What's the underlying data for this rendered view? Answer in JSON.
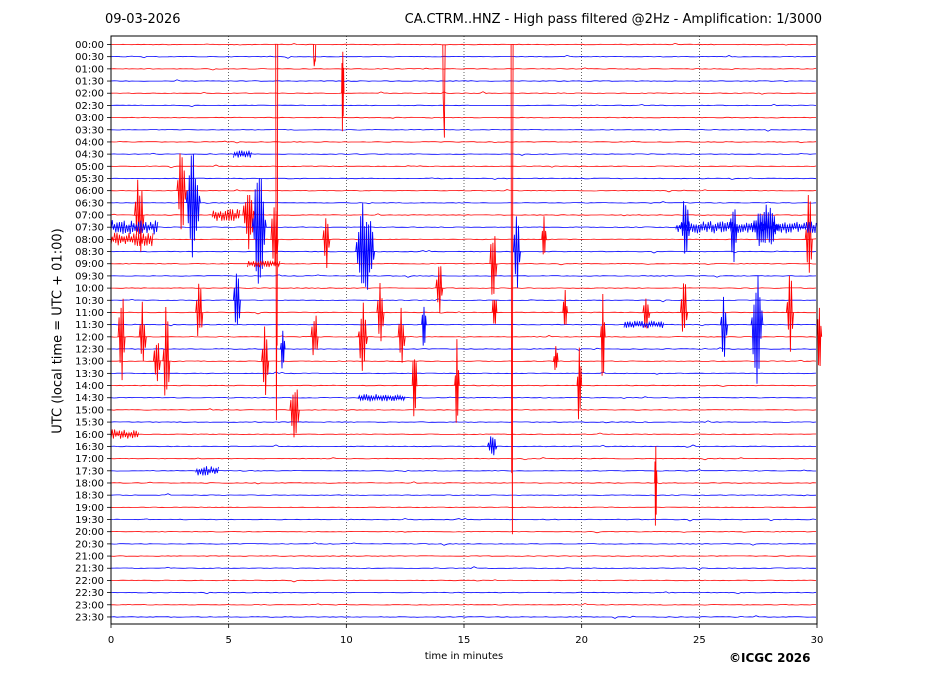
{
  "header": {
    "date": "09-03-2026",
    "title": "CA.CTRM..HNZ - High pass filtered @2Hz - Amplification: 1/3000"
  },
  "footer": {
    "copyright": "©ICGC 2026"
  },
  "colors": {
    "trace_a": "#ff0000",
    "trace_b": "#0000ff",
    "axes": "#000000",
    "background": "#ffffff"
  },
  "chart_data": {
    "type": "line",
    "title": "CA.CTRM..HNZ - High pass filtered @2Hz - Amplification: 1/3000",
    "xlabel": "time in minutes",
    "ylabel": "UTC (local time = UTC + 01:00)",
    "xlim": [
      0,
      30
    ],
    "xticks": [
      0,
      5,
      10,
      15,
      20,
      25,
      30
    ],
    "grid": "vertical dotted lines every 5 minutes",
    "row_labels": [
      "00:00",
      "00:30",
      "01:00",
      "01:30",
      "02:00",
      "02:30",
      "03:00",
      "03:30",
      "04:00",
      "04:30",
      "05:00",
      "05:30",
      "06:00",
      "06:30",
      "07:00",
      "07:30",
      "08:00",
      "08:30",
      "09:00",
      "09:30",
      "10:00",
      "10:30",
      "11:00",
      "11:30",
      "12:00",
      "12:30",
      "13:00",
      "13:30",
      "14:00",
      "14:30",
      "15:00",
      "15:30",
      "16:00",
      "16:30",
      "17:00",
      "17:30",
      "18:00",
      "18:30",
      "19:00",
      "19:30",
      "20:00",
      "20:30",
      "21:00",
      "21:30",
      "22:00",
      "22:30",
      "23:00",
      "23:30"
    ],
    "row_colors": "alternating red (even rows) and blue (odd rows)",
    "events": [
      {
        "row": 0,
        "minute": 8.6,
        "amp": 2.8,
        "dur": 0.1,
        "dir": "down"
      },
      {
        "row": 4,
        "minute": 9.8,
        "amp": 5.0,
        "dur": 0.1,
        "dir": "both"
      },
      {
        "row": 0,
        "minute": 14.1,
        "amp": 9.0,
        "dur": 0.1,
        "dir": "down"
      },
      {
        "row": 0,
        "minute": 7.0,
        "amp": 40.0,
        "dur": 0.05,
        "dir": "down"
      },
      {
        "row": 0,
        "minute": 17.0,
        "amp": 47.0,
        "dur": 0.05,
        "dir": "down"
      },
      {
        "row": 12,
        "minute": 2.8,
        "amp": 4.0,
        "dur": 0.4,
        "dir": "both"
      },
      {
        "row": 13,
        "minute": 3.2,
        "amp": 5.0,
        "dur": 0.6,
        "dir": "both"
      },
      {
        "row": 14,
        "minute": 1.0,
        "amp": 4.0,
        "dur": 0.4,
        "dir": "both"
      },
      {
        "row": 14,
        "minute": 5.6,
        "amp": 3.0,
        "dur": 0.5,
        "dir": "both"
      },
      {
        "row": 15,
        "minute": 6.0,
        "amp": 5.0,
        "dur": 0.6,
        "dir": "both"
      },
      {
        "row": 16,
        "minute": 6.8,
        "amp": 4.0,
        "dur": 0.3,
        "dir": "both"
      },
      {
        "row": 17,
        "minute": 10.4,
        "amp": 5.0,
        "dur": 0.8,
        "dir": "both"
      },
      {
        "row": 16,
        "minute": 9.0,
        "amp": 3.0,
        "dur": 0.3,
        "dir": "both"
      },
      {
        "row": 18,
        "minute": 16.1,
        "amp": 4.0,
        "dur": 0.3,
        "dir": "both"
      },
      {
        "row": 17,
        "minute": 17.1,
        "amp": 4.0,
        "dur": 0.3,
        "dir": "both"
      },
      {
        "row": 16,
        "minute": 18.3,
        "amp": 2.5,
        "dur": 0.2,
        "dir": "both"
      },
      {
        "row": 16,
        "minute": 29.5,
        "amp": 4.0,
        "dur": 0.3,
        "dir": "both"
      },
      {
        "row": 15,
        "minute": 26.3,
        "amp": 3.0,
        "dur": 0.3,
        "dir": "both"
      },
      {
        "row": 15,
        "minute": 24.2,
        "amp": 2.5,
        "dur": 0.4,
        "dir": "both"
      },
      {
        "row": 15,
        "minute": 27.2,
        "amp": 2.0,
        "dur": 1.2,
        "dir": "both"
      },
      {
        "row": 23,
        "minute": 27.2,
        "amp": 5.0,
        "dur": 0.5,
        "dir": "both"
      },
      {
        "row": 23,
        "minute": 25.9,
        "amp": 3.0,
        "dur": 0.3,
        "dir": "both"
      },
      {
        "row": 22,
        "minute": 24.2,
        "amp": 3.0,
        "dur": 0.3,
        "dir": "both"
      },
      {
        "row": 22,
        "minute": 28.7,
        "amp": 3.5,
        "dur": 0.3,
        "dir": "both"
      },
      {
        "row": 24,
        "minute": 0.3,
        "amp": 4.0,
        "dur": 0.3,
        "dir": "both"
      },
      {
        "row": 26,
        "minute": 2.2,
        "amp": 5.0,
        "dur": 0.3,
        "dir": "both"
      },
      {
        "row": 30,
        "minute": 7.6,
        "amp": 3.5,
        "dur": 0.4,
        "dir": "both"
      },
      {
        "row": 28,
        "minute": 12.8,
        "amp": 4.0,
        "dur": 0.2,
        "dir": "both"
      },
      {
        "row": 28,
        "minute": 14.6,
        "amp": 4.0,
        "dur": 0.2,
        "dir": "both"
      },
      {
        "row": 28,
        "minute": 19.8,
        "amp": 3.5,
        "dur": 0.2,
        "dir": "both"
      },
      {
        "row": 24,
        "minute": 20.8,
        "amp": 4.0,
        "dur": 0.2,
        "dir": "both"
      },
      {
        "row": 22,
        "minute": 16.2,
        "amp": 2.5,
        "dur": 0.2,
        "dir": "both"
      },
      {
        "row": 36,
        "minute": 23.1,
        "amp": 5.0,
        "dur": 0.1,
        "dir": "both"
      },
      {
        "row": 24,
        "minute": 8.5,
        "amp": 2.5,
        "dur": 0.3,
        "dir": "both"
      },
      {
        "row": 24,
        "minute": 10.5,
        "amp": 3.0,
        "dur": 0.4,
        "dir": "both"
      },
      {
        "row": 22,
        "minute": 11.3,
        "amp": 3.0,
        "dur": 0.3,
        "dir": "both"
      },
      {
        "row": 20,
        "minute": 13.8,
        "amp": 2.5,
        "dur": 0.3,
        "dir": "both"
      },
      {
        "row": 22,
        "minute": 22.6,
        "amp": 2.0,
        "dur": 0.3,
        "dir": "both"
      },
      {
        "row": 24,
        "minute": 30.0,
        "amp": 3.0,
        "dur": 0.2,
        "dir": "both"
      },
      {
        "row": 22,
        "minute": 19.2,
        "amp": 2.0,
        "dur": 0.2,
        "dir": "both"
      },
      {
        "row": 24,
        "minute": 1.2,
        "amp": 3.0,
        "dur": 0.3,
        "dir": "both"
      },
      {
        "row": 26,
        "minute": 6.4,
        "amp": 3.0,
        "dur": 0.3,
        "dir": "both"
      },
      {
        "row": 22,
        "minute": 3.6,
        "amp": 3.0,
        "dur": 0.3,
        "dir": "both"
      },
      {
        "row": 21,
        "minute": 5.2,
        "amp": 3.5,
        "dur": 0.3,
        "dir": "both"
      },
      {
        "row": 25,
        "minute": 7.2,
        "amp": 2.0,
        "dur": 0.2,
        "dir": "both"
      },
      {
        "row": 26,
        "minute": 1.8,
        "amp": 2.5,
        "dur": 0.3,
        "dir": "both"
      },
      {
        "row": 24,
        "minute": 12.2,
        "amp": 2.5,
        "dur": 0.3,
        "dir": "both"
      },
      {
        "row": 33,
        "minute": 16.0,
        "amp": 1.0,
        "dur": 0.4,
        "dir": "both"
      },
      {
        "row": 23,
        "minute": 13.2,
        "amp": 2.0,
        "dur": 0.2,
        "dir": "both"
      },
      {
        "row": 26,
        "minute": 18.8,
        "amp": 1.5,
        "dur": 0.2,
        "dir": "both"
      }
    ],
    "bursts": [
      {
        "row": 15,
        "start": 0.0,
        "end": 2.0,
        "amp": 0.6
      },
      {
        "row": 16,
        "start": 0.0,
        "end": 1.8,
        "amp": 0.6
      },
      {
        "row": 15,
        "start": 24.0,
        "end": 30.0,
        "amp": 0.5
      },
      {
        "row": 14,
        "start": 4.3,
        "end": 5.5,
        "amp": 0.5
      },
      {
        "row": 29,
        "start": 10.5,
        "end": 12.5,
        "amp": 0.3
      },
      {
        "row": 35,
        "start": 3.6,
        "end": 4.6,
        "amp": 0.4
      },
      {
        "row": 23,
        "start": 21.8,
        "end": 23.5,
        "amp": 0.3
      },
      {
        "row": 32,
        "start": 0.0,
        "end": 1.2,
        "amp": 0.4
      },
      {
        "row": 9,
        "start": 5.2,
        "end": 6.0,
        "amp": 0.3
      },
      {
        "row": 18,
        "start": 5.8,
        "end": 7.2,
        "amp": 0.3
      }
    ]
  }
}
